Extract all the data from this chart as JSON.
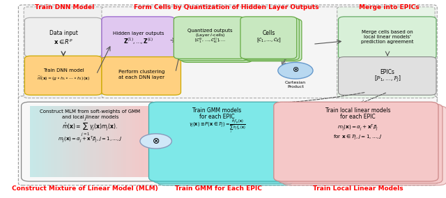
{
  "fig_width": 6.4,
  "fig_height": 2.84,
  "dpi": 100,
  "bg_color": "#ffffff",
  "section_titles": {
    "top_left": "Train DNN Model",
    "top_mid": "Form Cells by Quantization of Hidden Layer Outputs",
    "top_right": "Merge into EPICs",
    "bot_left": "Construct Mixture of Linear Model (MLM)",
    "bot_mid": "Train GMM for Each EPIC",
    "bot_right": "Train Local Linear Models"
  },
  "section_title_color": "#ff0000",
  "section_title_fontsize": 6.5
}
